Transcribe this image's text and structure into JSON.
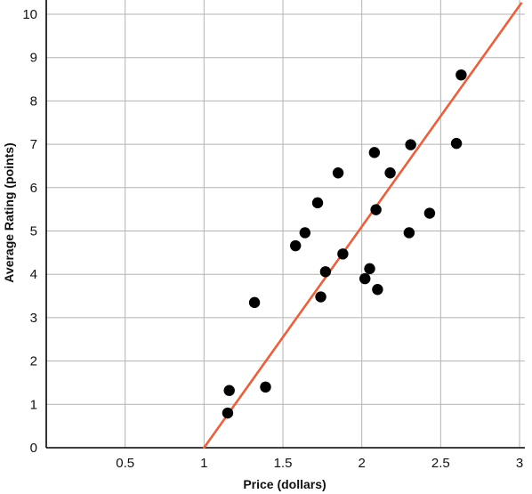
{
  "chart_data": {
    "type": "scatter",
    "xlabel": "Price (dollars)",
    "ylabel": "Average Rating (points)",
    "xlim": [
      0,
      3
    ],
    "ylim": [
      0,
      10
    ],
    "x_ticks": [
      {
        "value": 0.5,
        "label": "0.5"
      },
      {
        "value": 1,
        "label": "1"
      },
      {
        "value": 1.5,
        "label": "1.5"
      },
      {
        "value": 2,
        "label": "2"
      },
      {
        "value": 2.5,
        "label": "2.5"
      },
      {
        "value": 3,
        "label": "3"
      }
    ],
    "y_ticks": [
      {
        "value": 0,
        "label": "0"
      },
      {
        "value": 1,
        "label": "1"
      },
      {
        "value": 2,
        "label": "2"
      },
      {
        "value": 3,
        "label": "3"
      },
      {
        "value": 4,
        "label": "4"
      },
      {
        "value": 5,
        "label": "5"
      },
      {
        "value": 6,
        "label": "6"
      },
      {
        "value": 7,
        "label": "7"
      },
      {
        "value": 8,
        "label": "8"
      },
      {
        "value": 9,
        "label": "9"
      },
      {
        "value": 10,
        "label": "10"
      }
    ],
    "grid": true,
    "points": [
      {
        "x": 1.15,
        "y": 0.8
      },
      {
        "x": 1.16,
        "y": 1.32
      },
      {
        "x": 1.32,
        "y": 3.35
      },
      {
        "x": 1.39,
        "y": 1.4
      },
      {
        "x": 1.58,
        "y": 4.66
      },
      {
        "x": 1.64,
        "y": 4.96
      },
      {
        "x": 1.72,
        "y": 5.65
      },
      {
        "x": 1.74,
        "y": 3.48
      },
      {
        "x": 1.77,
        "y": 4.06
      },
      {
        "x": 1.85,
        "y": 6.34
      },
      {
        "x": 1.88,
        "y": 4.47
      },
      {
        "x": 2.02,
        "y": 3.9
      },
      {
        "x": 2.05,
        "y": 4.13
      },
      {
        "x": 2.08,
        "y": 6.81
      },
      {
        "x": 2.09,
        "y": 5.49
      },
      {
        "x": 2.1,
        "y": 3.65
      },
      {
        "x": 2.18,
        "y": 6.34
      },
      {
        "x": 2.3,
        "y": 4.96
      },
      {
        "x": 2.31,
        "y": 6.99
      },
      {
        "x": 2.43,
        "y": 5.41
      },
      {
        "x": 2.6,
        "y": 7.02
      },
      {
        "x": 2.63,
        "y": 8.6
      }
    ],
    "fit_line": {
      "slope": 5.1,
      "intercept": -5.1,
      "color": "#E8603C"
    },
    "point_color": "#000000",
    "grid_color": "#B3B3B3"
  }
}
